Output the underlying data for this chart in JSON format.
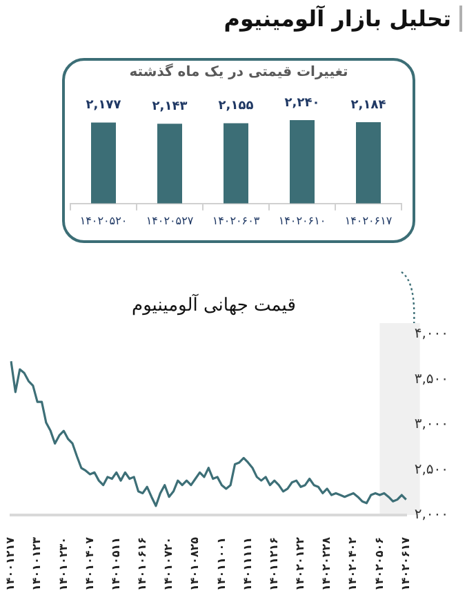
{
  "chart_data": [
    {
      "type": "other",
      "title": "تحلیل بازار آلومینیوم"
    },
    {
      "type": "bar",
      "title": "تغییرات قیمتی در یک ماه گذشته",
      "categories": [
        "۱۴۰۲۰۵۲۰",
        "۱۴۰۲۰۵۲۷",
        "۱۴۰۲۰۶۰۳",
        "۱۴۰۲۰۶۱۰",
        "۱۴۰۲۰۶۱۷"
      ],
      "values": [
        2177,
        2143,
        2155,
        2240,
        2184
      ],
      "color": "#3c6e76",
      "value_labels": [
        "۲,۱۷۷",
        "۲,۱۴۳",
        "۲,۱۵۵",
        "۲,۲۴۰",
        "۲,۱۸۴"
      ],
      "tick_labels": "x"
    },
    {
      "type": "line",
      "title": "قیمت جهانی آلومینیوم",
      "color": "#3d6f77",
      "marker": "none",
      "categories": [
        "۱۴۰۰۱۲۱۷",
        null,
        null,
        null,
        null,
        null,
        "۱۴۰۱۰۱۲۳",
        null,
        null,
        null,
        null,
        null,
        "۱۴۰۱۰۲۳۰",
        null,
        null,
        null,
        null,
        null,
        "۱۴۰۱۰۴۰۷",
        null,
        null,
        null,
        null,
        null,
        "۱۴۰۱۰۵۱۱",
        null,
        null,
        null,
        null,
        null,
        "۱۴۰۱۰۶۱۶",
        null,
        null,
        null,
        null,
        null,
        "۱۴۰۱۰۷۲۰",
        null,
        null,
        null,
        null,
        null,
        "۱۴۰۱۰۸۲۵",
        null,
        null,
        null,
        null,
        null,
        "۱۴۰۱۱۰۰۱",
        null,
        null,
        null,
        null,
        null,
        "۱۴۰۱۱۱۱۱",
        null,
        null,
        null,
        null,
        null,
        "۱۴۰۱۱۲۱۶",
        null,
        null,
        null,
        null,
        null,
        "۱۴۰۲۰۱۲۲",
        null,
        null,
        null,
        null,
        null,
        "۱۴۰۲۰۲۲۸",
        null,
        null,
        null,
        null,
        null,
        "۱۴۰۲۰۴۰۲",
        null,
        null,
        null,
        null,
        null,
        "۱۴۰۲۰۵۰۶",
        null,
        null,
        null,
        null,
        null,
        "۱۴۰۲۰۶۱۷"
      ],
      "values": [
        3700,
        3360,
        3610,
        3570,
        3480,
        3430,
        3250,
        3250,
        3020,
        2930,
        2790,
        2880,
        2930,
        2840,
        2790,
        2650,
        2520,
        2490,
        2450,
        2470,
        2380,
        2330,
        2420,
        2400,
        2470,
        2380,
        2470,
        2400,
        2420,
        2260,
        2240,
        2310,
        2200,
        2100,
        2240,
        2330,
        2200,
        2260,
        2380,
        2330,
        2380,
        2330,
        2400,
        2470,
        2420,
        2520,
        2400,
        2420,
        2330,
        2290,
        2330,
        2560,
        2580,
        2630,
        2580,
        2520,
        2420,
        2380,
        2420,
        2330,
        2380,
        2330,
        2260,
        2290,
        2360,
        2380,
        2310,
        2330,
        2400,
        2330,
        2310,
        2240,
        2290,
        2220,
        2240,
        2220,
        2200,
        2220,
        2240,
        2200,
        2150,
        2130,
        2220,
        2240,
        2220,
        2240,
        2200,
        2150,
        2170,
        2220,
        2170
      ],
      "ylim": [
        2000,
        4000
      ],
      "yticks": [
        {
          "value": 2000,
          "label": "۲,۰۰۰"
        },
        {
          "value": 2500,
          "label": "۲,۵۰۰"
        },
        {
          "value": 3000,
          "label": "۳,۰۰۰"
        },
        {
          "value": 3500,
          "label": "۳,۵۰۰"
        },
        {
          "value": 4000,
          "label": "۴,۰۰۰"
        }
      ],
      "bands": [
        {
          "axis": "x",
          "from": "۱۴۰۲۰۵۰۶",
          "to": "۱۴۰۲۰۶۱۷",
          "color": "#f0f0f0"
        }
      ]
    }
  ]
}
